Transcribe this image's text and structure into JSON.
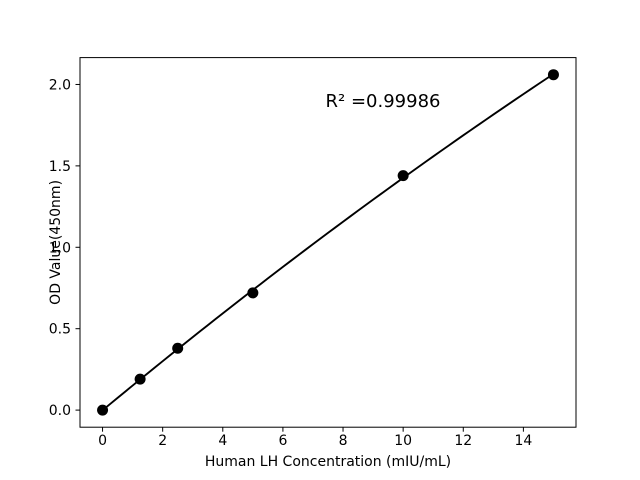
{
  "chart_data": {
    "type": "scatter",
    "x": [
      0,
      1.25,
      2.5,
      5,
      10,
      15
    ],
    "y": [
      0.0,
      0.19,
      0.38,
      0.72,
      1.44,
      2.06
    ],
    "title": "",
    "xlabel": "Human LH Concentration (mIU/mL)",
    "ylabel": "OD Value(450nm)",
    "annotation": {
      "text": "R² =0.99986",
      "x": 9.33,
      "y": 1.9
    },
    "xlim": [
      -0.75,
      15.75
    ],
    "ylim": [
      -0.105,
      2.165
    ],
    "x_ticks": {
      "values": [
        0,
        2,
        4,
        6,
        8,
        10,
        12,
        14
      ],
      "labels": [
        "0",
        "2",
        "4",
        "6",
        "8",
        "10",
        "12",
        "14"
      ]
    },
    "y_ticks": {
      "values": [
        0.0,
        0.5,
        1.0,
        1.5,
        2.0
      ],
      "labels": [
        "0.0",
        "0.5",
        "1.0",
        "1.5",
        "2.0"
      ]
    },
    "fit": "quadratic",
    "grid": false,
    "legend_position": "none",
    "marker_color": "#000000",
    "line_color": "#000000",
    "frame_color": "#000000",
    "background_color": "#ffffff"
  }
}
